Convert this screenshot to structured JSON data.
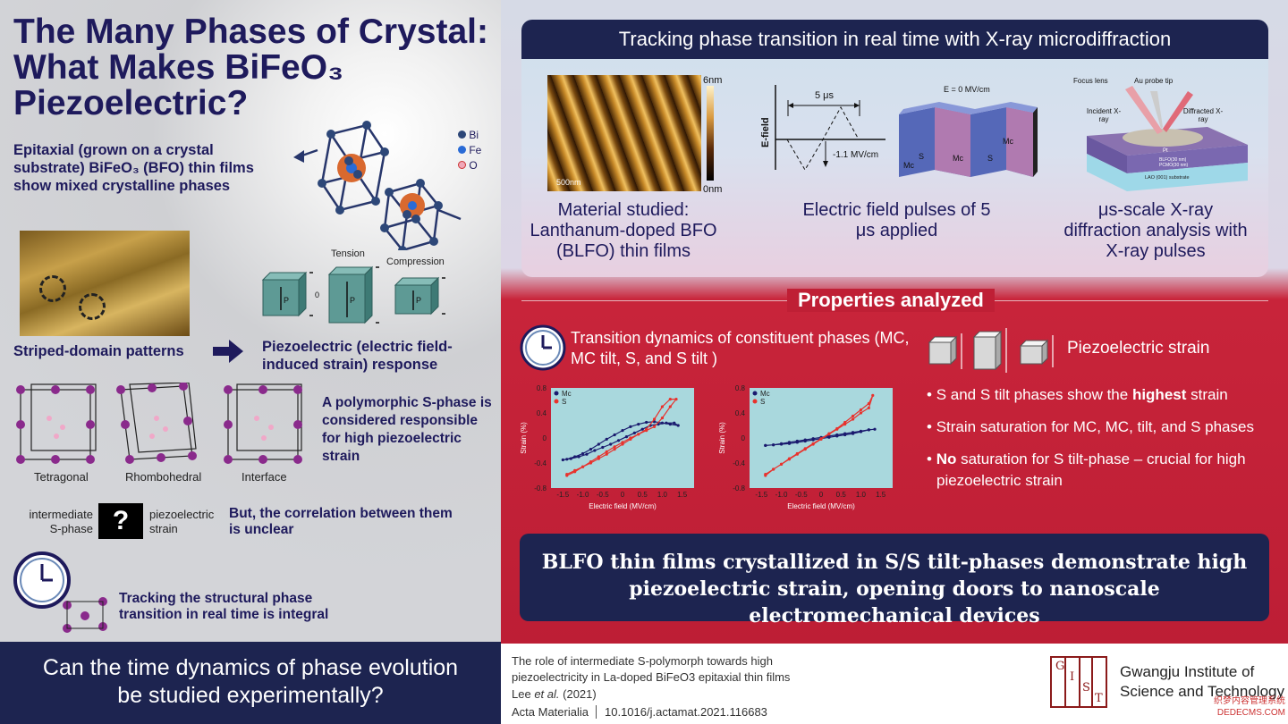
{
  "left": {
    "title": [
      "The Many Phases of Crystal:",
      "What Makes BiFeO₃",
      "Piezoelectric?"
    ],
    "intro": "Epitaxial (grown on a crystal substrate) BiFeO₃ (BFO) thin films show mixed crystalline phases",
    "legend": [
      "Bi",
      "Fe",
      "O"
    ],
    "striped_label": "Striped-domain patterns",
    "tension": "Tension",
    "compression": "Compression",
    "p": "P",
    "zero": "0",
    "piezo_label": "Piezoelectric (electric field-induced strain) response",
    "phases": [
      "Tetragonal",
      "Rhombohedral",
      "Interface"
    ],
    "polymorph": "A polymorphic S-phase is considered responsible for high piezoelectric strain",
    "intermediate": "intermediate S-phase",
    "question": "?",
    "piezo_strain": "piezoelectric strain",
    "correlation": "But, the correlation between them is unclear",
    "tracking": "Tracking the structural phase transition in real time is integral",
    "bottom": "Can the time dynamics of phase evolution be studied experimentally?"
  },
  "right": {
    "header": "Tracking phase transition in real time with X-ray microdiffraction",
    "afm": {
      "top": "6nm",
      "bottom": "0nm",
      "scale": "500nm"
    },
    "material": "Material studied: Lanthanum-doped BFO (BLFO) thin films",
    "pulse": {
      "efield": "E-field",
      "period": "5 μs",
      "amp": "-1.1 MV/cm",
      "e0": "E = 0 MV/cm",
      "phases": [
        "Mc",
        "S",
        "Mc",
        "S",
        "Mc"
      ]
    },
    "pulse_caption": "Electric field pulses of 5 μs applied",
    "xray": {
      "focus": "Focus lens",
      "probe": "Au probe tip",
      "incident": "Incident X-ray",
      "diffracted": "Diffracted X-ray",
      "pt": "Pt",
      "blfo": "BLFO(30 nm)",
      "pcmo": "PCMO(30 nm)",
      "lao": "LAO (001) substrate"
    },
    "xray_caption": "μs-scale X-ray diffraction analysis with X-ray pulses",
    "properties": "Properties analyzed",
    "dynamics": "Transition dynamics of constituent phases (MC, MC tilt, S, and S tilt )",
    "piezo_strain": "Piezoelectric strain",
    "bullets": [
      {
        "pre": "S and S tilt phases show the ",
        "bold": "highest",
        "post": " strain"
      },
      {
        "pre": "Strain saturation for  MC,  MC, tilt, and S phases",
        "bold": "",
        "post": ""
      },
      {
        "pre": "",
        "bold": "No",
        "post": " saturation for S tilt-phase – crucial for high piezoelectric strain"
      }
    ],
    "conclusion": "BLFO thin films crystallized in S/S tilt-phases demonstrate high piezoelectric strain, opening doors to nanoscale electromechanical devices",
    "citation": {
      "title": "The role of intermediate S-polymorph towards high piezoelectricity in La-doped BiFeO3 epitaxial thin films",
      "authors": "Lee",
      "etal": "et al.",
      "year": "(2021)",
      "journal": "Acta Materialia",
      "doi": "10.1016/j.actamat.2021.116683"
    },
    "institute": [
      "Gwangju Institute of",
      "Science and Technology"
    ],
    "gist": [
      "G",
      "I",
      "S",
      "T"
    ],
    "watermark": [
      "织梦内容管理系统",
      "DEDECMS.COM"
    ]
  },
  "colors": {
    "navy": "#1d2450",
    "red": "#bf1f35",
    "purple": "#7a1f6e",
    "mc": "#1a1a6e",
    "s": "#e8322d"
  },
  "chart_data": [
    {
      "type": "line",
      "xlabel": "Electric field (MV/cm)",
      "ylabel": "Strain (%)",
      "xlim": [
        -1.8,
        1.8
      ],
      "ylim": [
        -0.8,
        0.8
      ],
      "xticks": [
        "-1.5",
        "-1.0",
        "-0.5",
        "0",
        "0.5",
        "1.0",
        "1.5"
      ],
      "yticks": [
        "0.8",
        "0.4",
        "0",
        "-0.4",
        "-0.8"
      ],
      "series": [
        {
          "name": "Mc",
          "x": [
            -1.5,
            -1.3,
            -1.1,
            -0.9,
            -0.7,
            -0.5,
            -0.3,
            -0.1,
            0.1,
            0.3,
            0.5,
            0.7,
            0.9,
            1.1,
            1.3,
            1.4,
            1.2,
            1.0,
            0.8,
            0.6,
            0.4,
            0.2,
            0,
            -0.2,
            -0.4,
            -0.6,
            -0.8,
            -1.0,
            -1.2,
            -1.4
          ],
          "y": [
            -0.35,
            -0.33,
            -0.3,
            -0.26,
            -0.2,
            -0.15,
            -0.1,
            -0.04,
            0.02,
            0.08,
            0.14,
            0.2,
            0.22,
            0.24,
            0.24,
            0.2,
            0.22,
            0.24,
            0.26,
            0.25,
            0.22,
            0.18,
            0.12,
            0.05,
            -0.02,
            -0.1,
            -0.18,
            -0.25,
            -0.3,
            -0.34
          ]
        },
        {
          "name": "S",
          "x": [
            -1.4,
            -1.2,
            -1.0,
            -0.8,
            -0.6,
            -0.4,
            -0.2,
            0,
            0.2,
            0.4,
            0.6,
            0.8,
            1.0,
            1.2,
            1.35,
            1.2,
            1.0,
            0.8,
            0.6,
            0.4,
            0.2,
            0,
            -0.2,
            -0.4,
            -0.6,
            -0.8,
            -1.0,
            -1.2,
            -1.4
          ],
          "y": [
            -0.58,
            -0.52,
            -0.46,
            -0.4,
            -0.33,
            -0.26,
            -0.18,
            -0.1,
            -0.02,
            0.06,
            0.14,
            0.3,
            0.5,
            0.62,
            0.62,
            0.5,
            0.32,
            0.18,
            0.12,
            0.06,
            0.0,
            -0.07,
            -0.14,
            -0.22,
            -0.3,
            -0.38,
            -0.46,
            -0.54,
            -0.6
          ]
        }
      ]
    },
    {
      "type": "line",
      "xlabel": "Electric field (MV/cm)",
      "ylabel": "Strain (%)",
      "xlim": [
        -1.8,
        1.8
      ],
      "ylim": [
        -0.8,
        0.8
      ],
      "xticks": [
        "-1.5",
        "-1.0",
        "-0.5",
        "0",
        "0.5",
        "1.0",
        "1.5"
      ],
      "yticks": [
        "0.8",
        "0.4",
        "0",
        "-0.4",
        "-0.8"
      ],
      "series": [
        {
          "name": "Mc",
          "x": [
            -1.4,
            -1.2,
            -1.0,
            -0.8,
            -0.6,
            -0.4,
            -0.2,
            0,
            0.2,
            0.4,
            0.6,
            0.8,
            1.0,
            1.2,
            1.35,
            1.2,
            1.0,
            0.8,
            0.6,
            0.4,
            0.2,
            0,
            -0.2,
            -0.4,
            -0.6,
            -0.8,
            -1.0,
            -1.2,
            -1.4
          ],
          "y": [
            -0.12,
            -0.11,
            -0.1,
            -0.09,
            -0.07,
            -0.05,
            -0.03,
            -0.01,
            0.01,
            0.03,
            0.05,
            0.07,
            0.1,
            0.13,
            0.14,
            0.13,
            0.11,
            0.09,
            0.07,
            0.05,
            0.03,
            0.01,
            -0.01,
            -0.03,
            -0.05,
            -0.07,
            -0.09,
            -0.11,
            -0.12
          ]
        },
        {
          "name": "S",
          "x": [
            -1.4,
            -1.2,
            -1.0,
            -0.8,
            -0.6,
            -0.4,
            -0.2,
            0,
            0.2,
            0.4,
            0.6,
            0.8,
            1.0,
            1.2,
            1.3,
            1.2,
            1.0,
            0.8,
            0.6,
            0.4,
            0.2,
            0,
            -0.2,
            -0.4,
            -0.6,
            -0.8,
            -1.0,
            -1.2,
            -1.4
          ],
          "y": [
            -0.58,
            -0.5,
            -0.42,
            -0.34,
            -0.26,
            -0.18,
            -0.1,
            -0.02,
            0.06,
            0.14,
            0.22,
            0.3,
            0.4,
            0.48,
            0.68,
            0.55,
            0.45,
            0.35,
            0.25,
            0.15,
            0.07,
            -0.01,
            -0.09,
            -0.17,
            -0.25,
            -0.33,
            -0.42,
            -0.5,
            -0.6
          ]
        }
      ]
    }
  ]
}
